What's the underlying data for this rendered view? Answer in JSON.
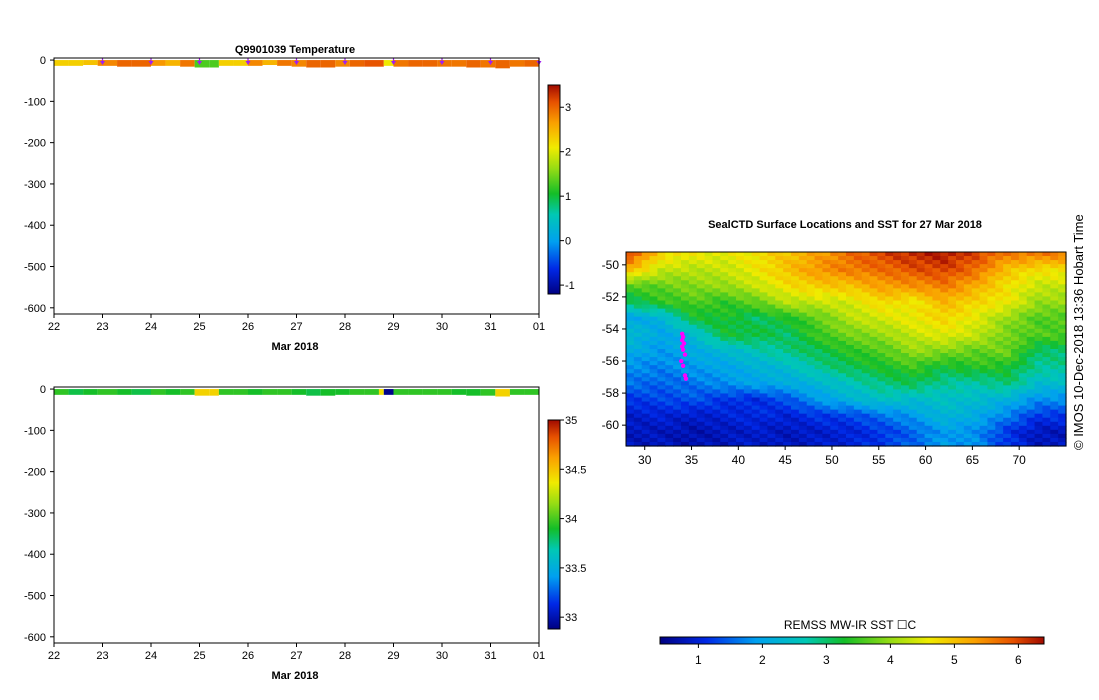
{
  "watermark": "©  IMOS 10-Dec-2018 13:36 Hobart Time",
  "map_colorbar": {
    "label": "REMSS MW-IR SST ☐C",
    "ticks": [
      "1",
      "2",
      "3",
      "4",
      "5",
      "6"
    ]
  },
  "chart_data": [
    {
      "type": "heatmap",
      "title": "Q9901039  Temperature",
      "xlabel": "Mar 2018",
      "xticks": [
        "22",
        "23",
        "24",
        "25",
        "26",
        "27",
        "28",
        "29",
        "30",
        "31",
        "01"
      ],
      "x_range_days": [
        22,
        32
      ],
      "yticks": [
        "0",
        "-100",
        "-200",
        "-300",
        "-400",
        "-500",
        "-600"
      ],
      "ylim": [
        -615,
        5
      ],
      "colorbar": {
        "ticks": [
          "-1",
          "0",
          "1",
          "2",
          "3"
        ],
        "range": [
          -1.2,
          3.5
        ]
      },
      "profile_markers_day": [
        23,
        24,
        25,
        26,
        27,
        28,
        29,
        30,
        31,
        32
      ],
      "profiles": [
        {
          "day": 22.0,
          "value": 2.3,
          "depth": 14
        },
        {
          "day": 22.3,
          "value": 2.3,
          "depth": 14
        },
        {
          "day": 22.6,
          "value": 2.4,
          "depth": 12
        },
        {
          "day": 22.9,
          "value": 2.8,
          "depth": 14
        },
        {
          "day": 23.3,
          "value": 3.0,
          "depth": 16
        },
        {
          "day": 23.6,
          "value": 3.0,
          "depth": 16
        },
        {
          "day": 24.0,
          "value": 2.7,
          "depth": 14
        },
        {
          "day": 24.3,
          "value": 2.5,
          "depth": 14
        },
        {
          "day": 24.6,
          "value": 2.9,
          "depth": 16
        },
        {
          "day": 24.9,
          "value": 1.3,
          "depth": 18
        },
        {
          "day": 25.2,
          "value": 1.3,
          "depth": 18
        },
        {
          "day": 25.4,
          "value": 2.3,
          "depth": 14
        },
        {
          "day": 25.7,
          "value": 2.3,
          "depth": 14
        },
        {
          "day": 26.0,
          "value": 2.8,
          "depth": 14
        },
        {
          "day": 26.3,
          "value": 2.5,
          "depth": 12
        },
        {
          "day": 26.6,
          "value": 2.9,
          "depth": 14
        },
        {
          "day": 26.9,
          "value": 2.8,
          "depth": 16
        },
        {
          "day": 27.2,
          "value": 3.0,
          "depth": 18
        },
        {
          "day": 27.5,
          "value": 3.0,
          "depth": 18
        },
        {
          "day": 27.8,
          "value": 2.8,
          "depth": 16
        },
        {
          "day": 28.1,
          "value": 3.0,
          "depth": 16
        },
        {
          "day": 28.4,
          "value": 3.1,
          "depth": 16
        },
        {
          "day": 28.8,
          "value": 2.1,
          "depth": 14
        },
        {
          "day": 29.0,
          "value": 2.9,
          "depth": 16
        },
        {
          "day": 29.3,
          "value": 3.0,
          "depth": 16
        },
        {
          "day": 29.6,
          "value": 3.0,
          "depth": 16
        },
        {
          "day": 29.9,
          "value": 2.9,
          "depth": 16
        },
        {
          "day": 30.2,
          "value": 2.9,
          "depth": 16
        },
        {
          "day": 30.5,
          "value": 3.0,
          "depth": 18
        },
        {
          "day": 30.8,
          "value": 2.9,
          "depth": 18
        },
        {
          "day": 31.1,
          "value": 3.0,
          "depth": 20
        },
        {
          "day": 31.4,
          "value": 2.9,
          "depth": 16
        },
        {
          "day": 31.7,
          "value": 3.0,
          "depth": 16
        }
      ]
    },
    {
      "type": "heatmap",
      "title": "",
      "xlabel": "Mar 2018",
      "xticks": [
        "22",
        "23",
        "24",
        "25",
        "26",
        "27",
        "28",
        "29",
        "30",
        "31",
        "01"
      ],
      "x_range_days": [
        22,
        32
      ],
      "yticks": [
        "0",
        "-100",
        "-200",
        "-300",
        "-400",
        "-500",
        "-600"
      ],
      "ylim": [
        -615,
        5
      ],
      "colorbar": {
        "ticks": [
          "33",
          "33.5",
          "34",
          "34.5",
          "35"
        ],
        "range": [
          32.88,
          35.0
        ]
      },
      "profiles": [
        {
          "day": 22.0,
          "value": 33.95,
          "depth": 14
        },
        {
          "day": 22.3,
          "value": 33.85,
          "depth": 14
        },
        {
          "day": 22.6,
          "value": 33.9,
          "depth": 14
        },
        {
          "day": 22.9,
          "value": 33.95,
          "depth": 14
        },
        {
          "day": 23.3,
          "value": 33.9,
          "depth": 14
        },
        {
          "day": 23.6,
          "value": 33.85,
          "depth": 14
        },
        {
          "day": 24.0,
          "value": 33.95,
          "depth": 14
        },
        {
          "day": 24.3,
          "value": 33.9,
          "depth": 14
        },
        {
          "day": 24.6,
          "value": 33.95,
          "depth": 14
        },
        {
          "day": 24.9,
          "value": 34.45,
          "depth": 16
        },
        {
          "day": 25.2,
          "value": 34.45,
          "depth": 16
        },
        {
          "day": 25.4,
          "value": 33.95,
          "depth": 14
        },
        {
          "day": 25.7,
          "value": 33.95,
          "depth": 14
        },
        {
          "day": 26.0,
          "value": 33.9,
          "depth": 14
        },
        {
          "day": 26.3,
          "value": 33.95,
          "depth": 14
        },
        {
          "day": 26.6,
          "value": 33.95,
          "depth": 14
        },
        {
          "day": 26.9,
          "value": 33.9,
          "depth": 14
        },
        {
          "day": 27.2,
          "value": 33.85,
          "depth": 16
        },
        {
          "day": 27.5,
          "value": 33.9,
          "depth": 16
        },
        {
          "day": 27.8,
          "value": 33.9,
          "depth": 14
        },
        {
          "day": 28.1,
          "value": 33.95,
          "depth": 14
        },
        {
          "day": 28.4,
          "value": 33.95,
          "depth": 14
        },
        {
          "day": 28.7,
          "value": 34.4,
          "depth": 14
        },
        {
          "day": 28.8,
          "value": 32.9,
          "depth": 14
        },
        {
          "day": 29.0,
          "value": 33.95,
          "depth": 14
        },
        {
          "day": 29.3,
          "value": 33.95,
          "depth": 14
        },
        {
          "day": 29.6,
          "value": 33.95,
          "depth": 14
        },
        {
          "day": 29.9,
          "value": 33.95,
          "depth": 14
        },
        {
          "day": 30.2,
          "value": 33.9,
          "depth": 14
        },
        {
          "day": 30.5,
          "value": 33.9,
          "depth": 16
        },
        {
          "day": 30.8,
          "value": 33.95,
          "depth": 16
        },
        {
          "day": 31.1,
          "value": 34.45,
          "depth": 18
        },
        {
          "day": 31.4,
          "value": 33.95,
          "depth": 14
        },
        {
          "day": 31.7,
          "value": 33.95,
          "depth": 14
        }
      ]
    },
    {
      "type": "heatmap",
      "title": "SealCTD Surface Locations and SST for 27 Mar 2018",
      "xlim": [
        28,
        75
      ],
      "ylim": [
        -61.3,
        -49.2
      ],
      "xticks": [
        "30",
        "35",
        "40",
        "45",
        "50",
        "55",
        "60",
        "65",
        "70"
      ],
      "x_tick_values": [
        30,
        35,
        40,
        45,
        50,
        55,
        60,
        65,
        70
      ],
      "yticks": [
        "-50",
        "-52",
        "-54",
        "-56",
        "-58",
        "-60"
      ],
      "y_tick_values": [
        -50,
        -52,
        -54,
        -56,
        -58,
        -60
      ],
      "colorbar_range": [
        0.4,
        6.4
      ],
      "sst_grid": [
        [
          6.0,
          4.8,
          4.6,
          4.5,
          4.7,
          5.0,
          5.3,
          5.7,
          6.0,
          6.2,
          6.3,
          6.0,
          5.6,
          5.6
        ],
        [
          5.0,
          4.3,
          4.2,
          4.3,
          4.6,
          5.0,
          5.4,
          5.6,
          5.7,
          5.9,
          6.0,
          5.7,
          5.0,
          4.7
        ],
        [
          3.6,
          3.7,
          3.9,
          4.0,
          4.3,
          4.7,
          4.9,
          5.0,
          5.3,
          5.4,
          5.6,
          5.2,
          4.7,
          4.3
        ],
        [
          3.0,
          3.4,
          3.6,
          3.4,
          3.7,
          4.2,
          4.3,
          4.4,
          4.8,
          4.6,
          5.1,
          4.8,
          4.6,
          4.0
        ],
        [
          2.0,
          2.2,
          3.2,
          3.3,
          3.0,
          3.3,
          3.7,
          4.2,
          4.4,
          4.6,
          4.8,
          4.5,
          4.0,
          3.6
        ],
        [
          2.4,
          2.0,
          2.3,
          3.2,
          3.2,
          3.0,
          3.5,
          3.8,
          4.0,
          4.3,
          4.5,
          4.3,
          3.8,
          3.6
        ],
        [
          2.1,
          1.9,
          2.1,
          2.3,
          2.6,
          2.9,
          3.1,
          3.4,
          3.6,
          4.0,
          3.9,
          3.7,
          3.8,
          3.0
        ],
        [
          1.8,
          1.7,
          1.9,
          2.0,
          2.2,
          2.4,
          2.8,
          3.1,
          3.3,
          3.5,
          3.2,
          3.4,
          3.3,
          2.8
        ],
        [
          1.6,
          1.5,
          1.6,
          1.8,
          2.0,
          2.1,
          2.3,
          2.6,
          2.9,
          3.1,
          2.8,
          2.7,
          3.0,
          2.4
        ],
        [
          1.2,
          1.3,
          1.4,
          1.2,
          1.1,
          1.4,
          1.9,
          2.2,
          2.5,
          2.4,
          2.5,
          2.4,
          2.2,
          1.8
        ],
        [
          0.9,
          1.0,
          0.9,
          1.0,
          1.1,
          1.0,
          1.2,
          1.3,
          1.6,
          1.9,
          2.3,
          2.1,
          1.7,
          1.2
        ],
        [
          0.8,
          0.8,
          0.7,
          0.8,
          0.9,
          0.8,
          0.9,
          1.0,
          1.2,
          1.5,
          1.9,
          1.8,
          1.2,
          0.8
        ]
      ],
      "seal_locations": [
        {
          "lon": 34.0,
          "lat": -54.3
        },
        {
          "lon": 34.1,
          "lat": -54.5
        },
        {
          "lon": 34.0,
          "lat": -54.7
        },
        {
          "lon": 34.2,
          "lat": -54.9
        },
        {
          "lon": 34.0,
          "lat": -55.1
        },
        {
          "lon": 34.1,
          "lat": -55.3
        },
        {
          "lon": 34.3,
          "lat": -55.6
        },
        {
          "lon": 33.9,
          "lat": -56.0
        },
        {
          "lon": 34.1,
          "lat": -56.3
        },
        {
          "lon": 34.3,
          "lat": -56.9
        },
        {
          "lon": 34.4,
          "lat": -57.1
        }
      ]
    }
  ]
}
